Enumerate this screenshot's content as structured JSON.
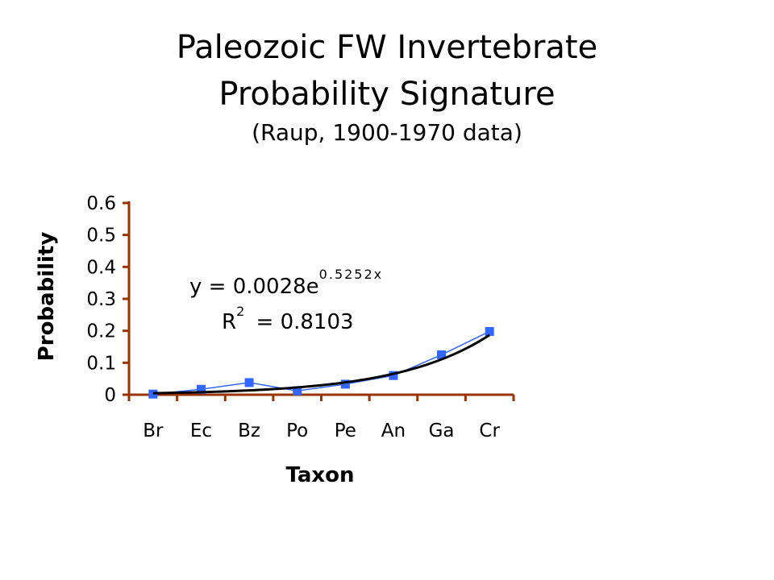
{
  "chart_data": {
    "type": "line",
    "title": "Paleozoic FW Invertebrate",
    "title_line2": "Probability Signature",
    "subtitle": "(Raup, 1900-1970 data)",
    "xlabel": "Taxon",
    "ylabel": "Probability",
    "categories": [
      "Br",
      "Ec",
      "Bz",
      "Po",
      "Pe",
      "An",
      "Ga",
      "Cr"
    ],
    "yticks": [
      "0",
      "0.1",
      "0.2",
      "0.3",
      "0.4",
      "0.5",
      "0.6"
    ],
    "ylim": [
      0,
      0.6
    ],
    "grid": false,
    "series": [
      {
        "values": [
          0.002,
          0.017,
          0.038,
          0.012,
          0.033,
          0.06,
          0.125,
          0.198
        ],
        "color": "#3366ff",
        "marker": "square"
      }
    ],
    "trendline": {
      "type": "exponential",
      "coefficient": 0.0028,
      "exponent": 0.5252,
      "color": "#000000",
      "equation_base": "y = 0.0028e",
      "equation_exp": "0.5252x",
      "r2_label": "R",
      "r2_sup": "2",
      "r2_value": " = 0.8103"
    },
    "axis_color": "#993300"
  }
}
